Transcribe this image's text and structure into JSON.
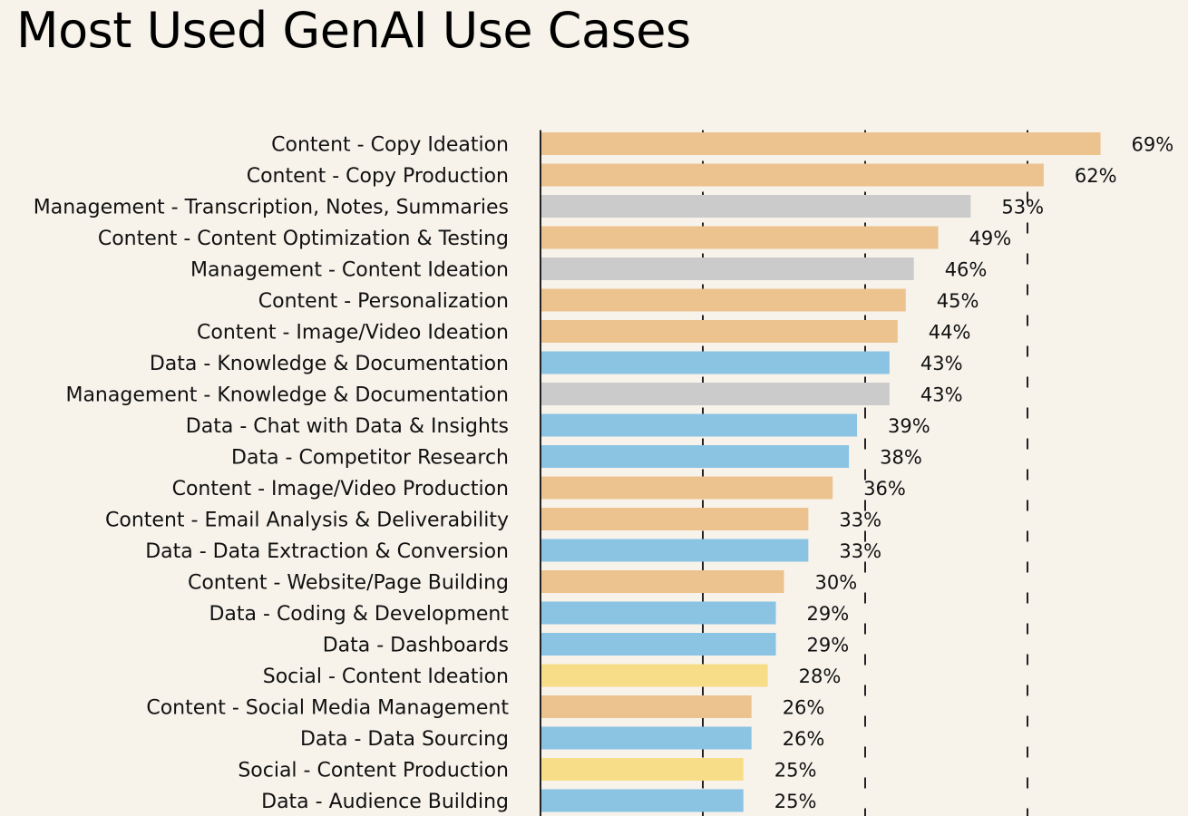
{
  "chart_data": {
    "type": "bar",
    "orientation": "horizontal",
    "title": "Most Used GenAI Use Cases",
    "xlabel": "",
    "ylabel": "",
    "xlim": [
      0,
      70
    ],
    "grid": "dashed vertical reference lines",
    "colors": {
      "Content": "#ecc38f",
      "Management": "#cbcbcb",
      "Data": "#8bc3e3",
      "Social": "#f8dd88"
    },
    "bars": [
      {
        "label": "Content - Copy Ideation",
        "group": "Content",
        "value": 69,
        "value_label": "69%"
      },
      {
        "label": "Content - Copy Production",
        "group": "Content",
        "value": 62,
        "value_label": "62%"
      },
      {
        "label": "Management - Transcription, Notes, Summaries",
        "group": "Management",
        "value": 53,
        "value_label": "53%"
      },
      {
        "label": "Content - Content Optimization & Testing",
        "group": "Content",
        "value": 49,
        "value_label": "49%"
      },
      {
        "label": "Management - Content Ideation",
        "group": "Management",
        "value": 46,
        "value_label": "46%"
      },
      {
        "label": "Content - Personalization",
        "group": "Content",
        "value": 45,
        "value_label": "45%"
      },
      {
        "label": "Content - Image/Video Ideation",
        "group": "Content",
        "value": 44,
        "value_label": "44%"
      },
      {
        "label": "Data - Knowledge & Documentation",
        "group": "Data",
        "value": 43,
        "value_label": "43%"
      },
      {
        "label": "Management - Knowledge & Documentation",
        "group": "Management",
        "value": 43,
        "value_label": "43%"
      },
      {
        "label": "Data - Chat with Data & Insights",
        "group": "Data",
        "value": 39,
        "value_label": "39%"
      },
      {
        "label": "Data - Competitor Research",
        "group": "Data",
        "value": 38,
        "value_label": "38%"
      },
      {
        "label": "Content - Image/Video Production",
        "group": "Content",
        "value": 36,
        "value_label": "36%"
      },
      {
        "label": "Content - Email Analysis & Deliverability",
        "group": "Content",
        "value": 33,
        "value_label": "33%"
      },
      {
        "label": "Data - Data Extraction & Conversion",
        "group": "Data",
        "value": 33,
        "value_label": "33%"
      },
      {
        "label": "Content - Website/Page Building",
        "group": "Content",
        "value": 30,
        "value_label": "30%"
      },
      {
        "label": "Data - Coding & Development",
        "group": "Data",
        "value": 29,
        "value_label": "29%"
      },
      {
        "label": "Data - Dashboards",
        "group": "Data",
        "value": 29,
        "value_label": "29%"
      },
      {
        "label": "Social - Content Ideation",
        "group": "Social",
        "value": 28,
        "value_label": "28%"
      },
      {
        "label": "Content - Social Media Management",
        "group": "Content",
        "value": 26,
        "value_label": "26%"
      },
      {
        "label": "Data - Data Sourcing",
        "group": "Data",
        "value": 26,
        "value_label": "26%"
      },
      {
        "label": "Social - Content Production",
        "group": "Social",
        "value": 25,
        "value_label": "25%"
      },
      {
        "label": "Data - Audience Building",
        "group": "Data",
        "value": 25,
        "value_label": "25%"
      }
    ],
    "reference_lines": [
      20,
      40,
      60
    ]
  }
}
